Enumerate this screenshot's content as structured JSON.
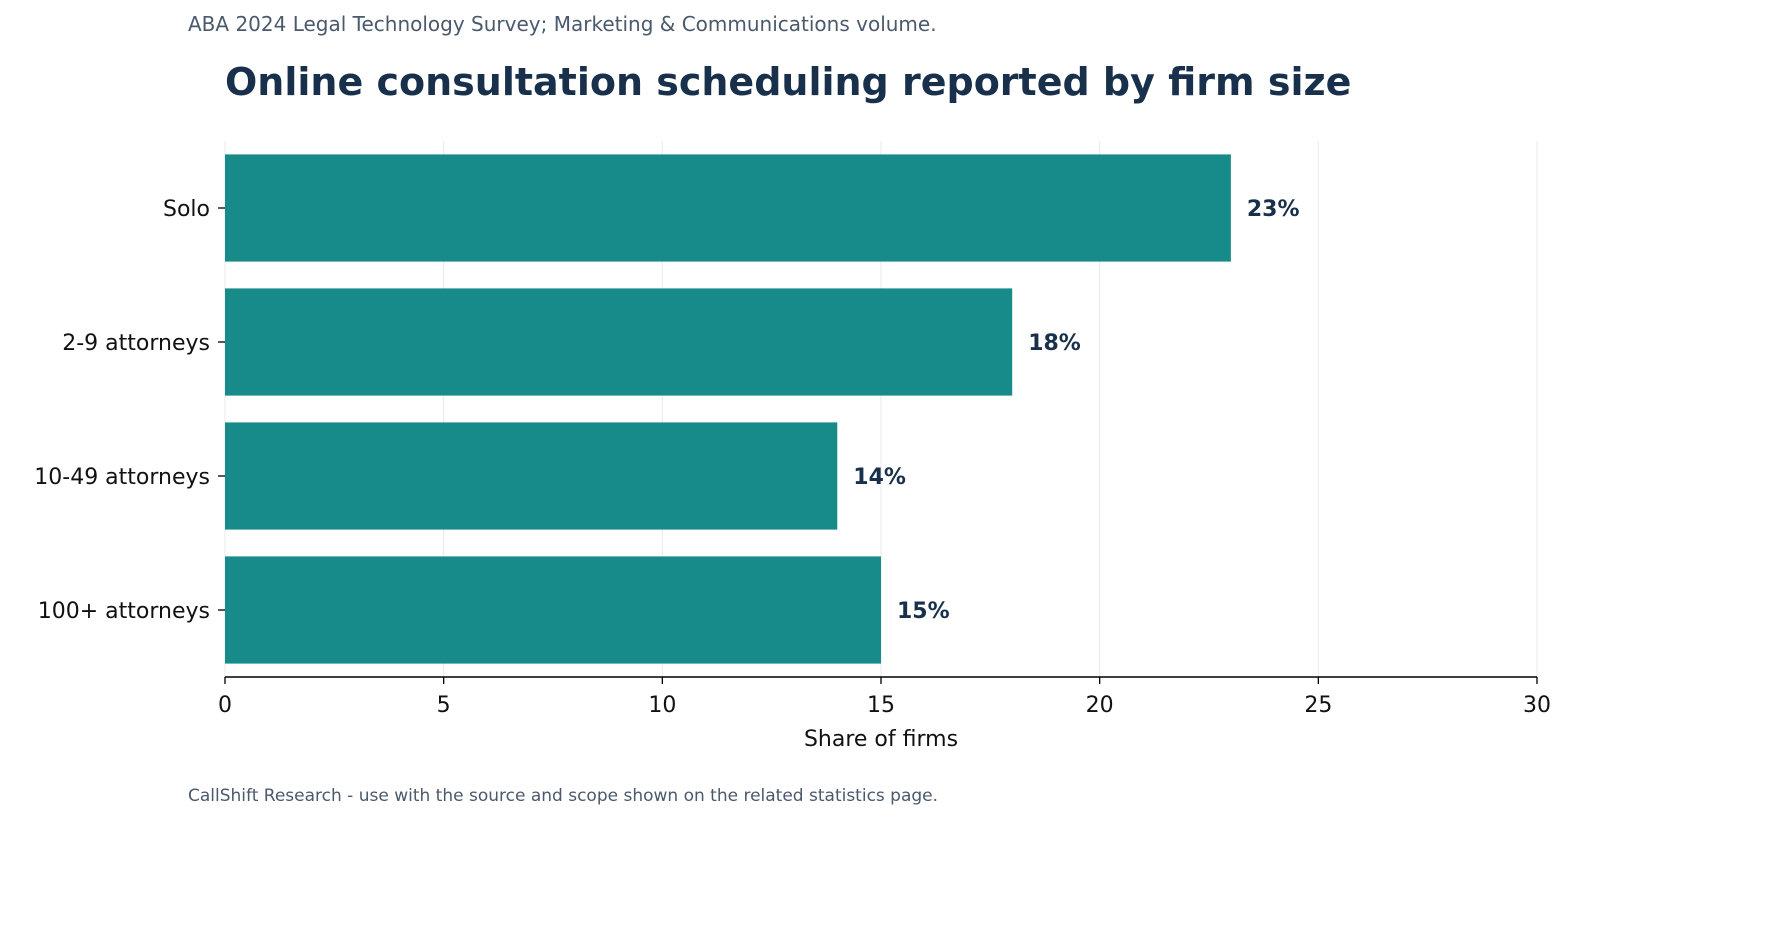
{
  "header": {
    "subtitle": "ABA 2024 Legal Technology Survey; Marketing & Communications volume.",
    "title": "Online consultation scheduling reported by firm size"
  },
  "footer": {
    "note": "CallShift Research - use with the source and scope shown on the related statistics page."
  },
  "chart_data": {
    "type": "bar",
    "orientation": "horizontal",
    "title": "Online consultation scheduling reported by firm size",
    "categories": [
      "Solo",
      "2-9 attorneys",
      "10-49 attorneys",
      "100+ attorneys"
    ],
    "values": [
      23,
      18,
      14,
      15
    ],
    "value_labels": [
      "23%",
      "18%",
      "14%",
      "15%"
    ],
    "xlabel": "Share of firms",
    "ylabel": "",
    "xlim": [
      0,
      30
    ],
    "xticks": [
      0,
      5,
      10,
      15,
      20,
      25,
      30
    ],
    "grid": "vertical",
    "legend": "none",
    "colors": {
      "bar": "#178b89",
      "value_label": "#18304b",
      "grid": "#e9e9e9",
      "axis": "#000000"
    }
  }
}
